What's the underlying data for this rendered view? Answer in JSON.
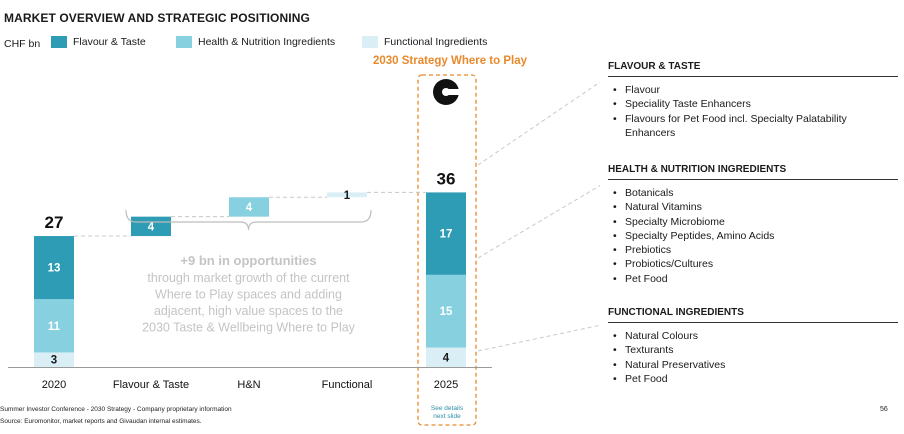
{
  "title": "MARKET OVERVIEW AND STRATEGIC POSITIONING",
  "colors": {
    "flavour_taste": "#2e9cb5",
    "health_nutrition": "#86d0e0",
    "functional": "#d9eff5",
    "accent_orange": "#e8892b",
    "connector": "#c8c8c8",
    "annotation_text": "#c4c4c4"
  },
  "chart_data": {
    "type": "bar",
    "subtype": "waterfall",
    "unit": "CHF bn",
    "legend": [
      {
        "name": "Flavour & Taste",
        "color": "#2e9cb5"
      },
      {
        "name": "Health & Nutrition Ingredients",
        "color": "#86d0e0"
      },
      {
        "name": "Functional Ingredients",
        "color": "#d9eff5"
      }
    ],
    "categories": [
      "2020",
      "Flavour & Taste",
      "H&N",
      "Functional",
      "2025"
    ],
    "stacked_totals": [
      {
        "category": "2020",
        "total": 27,
        "segments": {
          "functional": 3,
          "health_nutrition": 11,
          "flavour_taste": 13
        }
      },
      {
        "category": "2025",
        "total": 36,
        "segments": {
          "functional": 4,
          "health_nutrition": 15,
          "flavour_taste": 17
        }
      }
    ],
    "increments": [
      {
        "category": "Flavour & Taste",
        "value": 4,
        "base": 27,
        "series": "flavour_taste"
      },
      {
        "category": "H&N",
        "value": 4,
        "base": 31,
        "series": "health_nutrition"
      },
      {
        "category": "Functional",
        "value": 1,
        "base": 35,
        "series": "functional"
      }
    ],
    "ylim": [
      0,
      38
    ],
    "annotation": {
      "headline": "+9 bn in opportunities",
      "body": [
        "through market growth of the current",
        "Where to Play spaces and adding",
        "adjacent, high value spaces to the",
        "2030 Taste & Wellbeing Where to Play"
      ]
    }
  },
  "strategy_box": {
    "title": "2030 Strategy Where to Play",
    "see_details": [
      "See details",
      "next slide"
    ]
  },
  "panels": [
    {
      "title": "FLAVOUR & TASTE",
      "items": [
        "Flavour",
        "Speciality Taste Enhancers",
        "Flavours for Pet Food incl. Specialty Palatability Enhancers"
      ]
    },
    {
      "title": "HEALTH & NUTRITION INGREDIENTS",
      "items": [
        "Botanicals",
        "Natural Vitamins",
        "Specialty Microbiome",
        "Specialty Peptides, Amino Acids",
        "Prebiotics",
        "Probiotics/Cultures",
        "Pet Food"
      ]
    },
    {
      "title": "FUNCTIONAL INGREDIENTS",
      "items": [
        "Natural Colours",
        "Texturants",
        "Natural Preservatives",
        "Pet Food"
      ]
    }
  ],
  "footer": {
    "line1": "Summer Investor Conference - 2030 Strategy - Company proprietary information",
    "line2": "Source: Euromonitor, market reports and Givaudan internal estimates.",
    "page": "56"
  }
}
